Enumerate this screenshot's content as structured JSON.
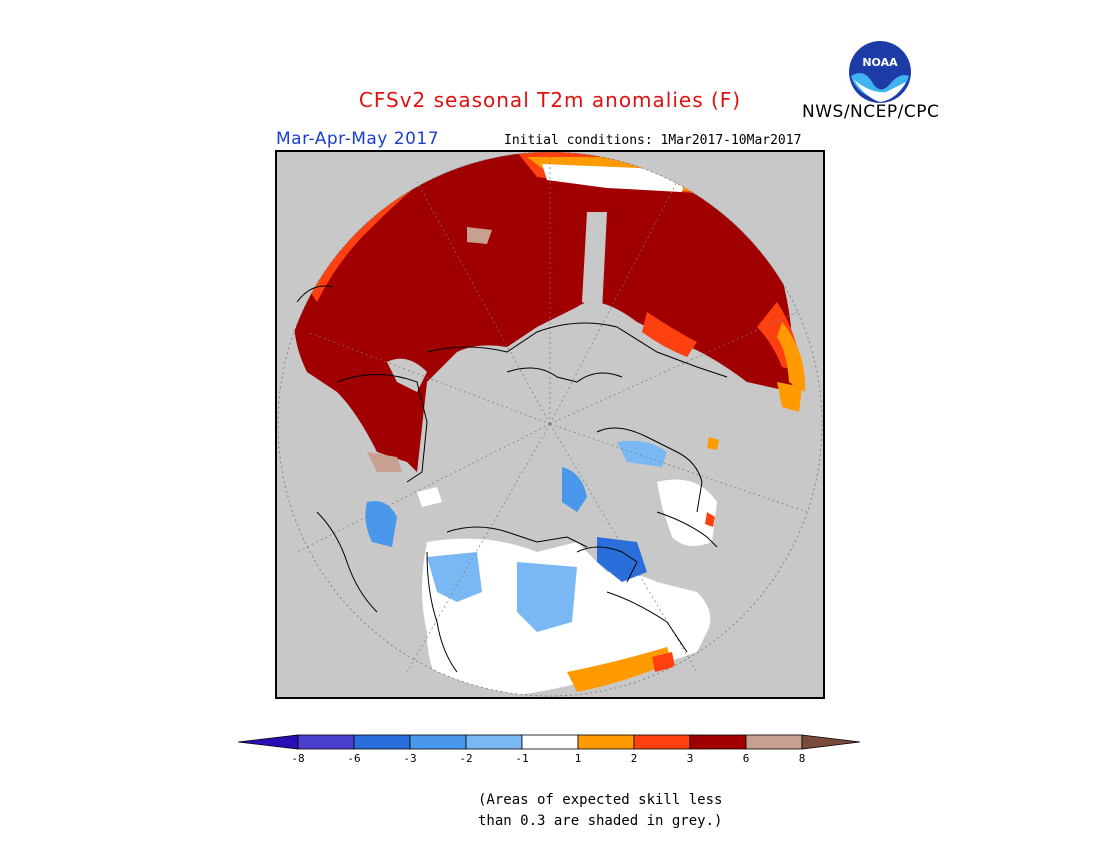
{
  "title": "CFSv2 seasonal T2m anomalies (F)",
  "agency": "NWS/NCEP/CPC",
  "logo_text": "NOAA",
  "season": "Mar-Apr-May 2017",
  "initial_conditions": "Initial conditions: 1Mar2017-10Mar2017",
  "colorbar": {
    "labels": [
      "-8",
      "-6",
      "-3",
      "-2",
      "-1",
      "1",
      "2",
      "3",
      "6",
      "8"
    ],
    "colors": [
      "#2a0fb4",
      "#4a3ecc",
      "#2a6edc",
      "#4a98ec",
      "#7ab8f4",
      "#ffffff",
      "#ff9a00",
      "#ff4010",
      "#a00000",
      "#c8a090",
      "#7a4a3a"
    ]
  },
  "note": {
    "line1": "(Areas of expected skill less",
    "line2": "than 0.3 are shaded in grey.)"
  }
}
